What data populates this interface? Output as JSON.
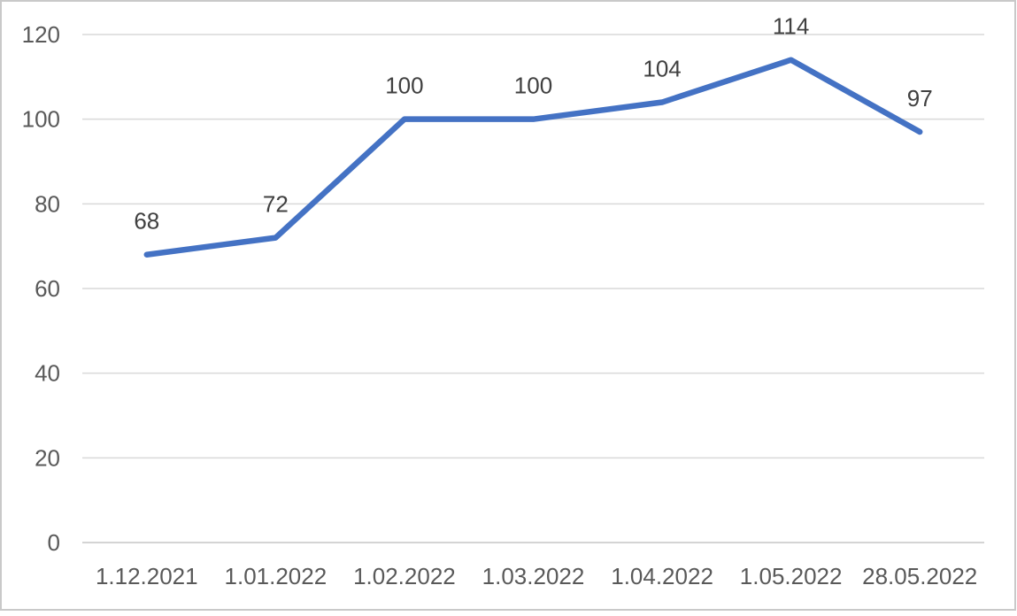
{
  "chart_data": {
    "type": "line",
    "title": "",
    "xlabel": "",
    "ylabel": "",
    "categories": [
      "1.12.2021",
      "1.01.2022",
      "1.02.2022",
      "1.03.2022",
      "1.04.2022",
      "1.05.2022",
      "28.05.2022"
    ],
    "values": [
      68,
      72,
      100,
      100,
      104,
      114,
      97
    ],
    "ylim": [
      0,
      120
    ],
    "yticks": [
      0,
      20,
      40,
      60,
      80,
      100,
      120
    ],
    "grid": "horizontal",
    "legend": "none",
    "data_labels_position": "above",
    "colors": {
      "line": "#4472C4",
      "gridline": "#D9D9D9",
      "axis_line": "#C6C6C6",
      "tick_label": "#595959",
      "data_label": "#404040",
      "background": "#FFFFFF",
      "border": "#C9C9C9"
    }
  }
}
